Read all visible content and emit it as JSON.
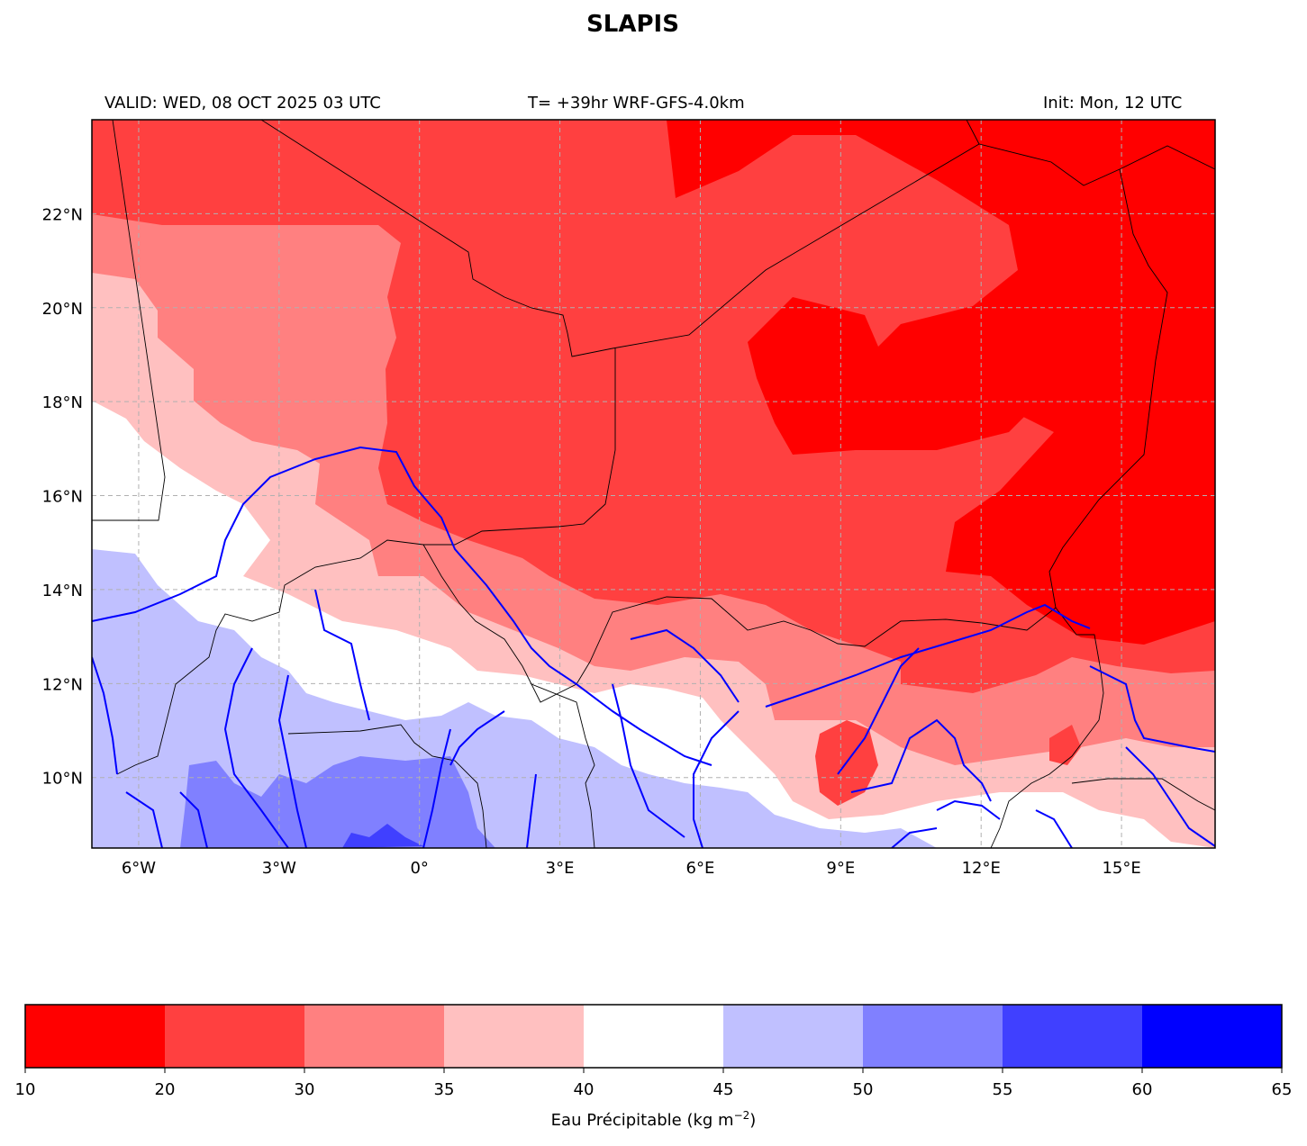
{
  "title": "SLAPIS",
  "subtitle": {
    "valid": "VALID: WED, 08 OCT 2025 03 UTC",
    "run": "T= +39hr WRF-GFS-4.0km",
    "init": "Init: Mon, 12 UTC"
  },
  "axes": {
    "lon_range": [
      -7.0,
      17.0
    ],
    "lat_range": [
      8.5,
      24.0
    ],
    "lon_ticks": [
      -6,
      -3,
      0,
      3,
      6,
      9,
      12,
      15
    ],
    "lon_tick_labels": [
      "6°W",
      "3°W",
      "0°",
      "3°E",
      "6°E",
      "9°E",
      "12°E",
      "15°E"
    ],
    "lat_ticks": [
      10,
      12,
      14,
      16,
      18,
      20,
      22
    ],
    "lat_tick_labels": [
      "10°N",
      "12°N",
      "14°N",
      "16°N",
      "18°N",
      "20°N",
      "22°N"
    ],
    "gridlines": true
  },
  "colorbar": {
    "levels": [
      10,
      20,
      30,
      35,
      40,
      45,
      50,
      55,
      60,
      65
    ],
    "tick_labels": [
      "10",
      "20",
      "30",
      "35",
      "40",
      "45",
      "50",
      "55",
      "60",
      "65"
    ],
    "colors": [
      "#ff0000",
      "#ff4040",
      "#ff8080",
      "#ffc0c0",
      "#ffffff",
      "#c0c0ff",
      "#8080ff",
      "#4040ff",
      "#0000ff"
    ],
    "label_main": "Eau Précipitable (kg m",
    "label_exp": "−2",
    "label_end": ")",
    "orientation": "horizontal"
  },
  "colors": {
    "rivers": "#0000ff",
    "borders": "#000000",
    "grid": "#b0b0b0"
  }
}
